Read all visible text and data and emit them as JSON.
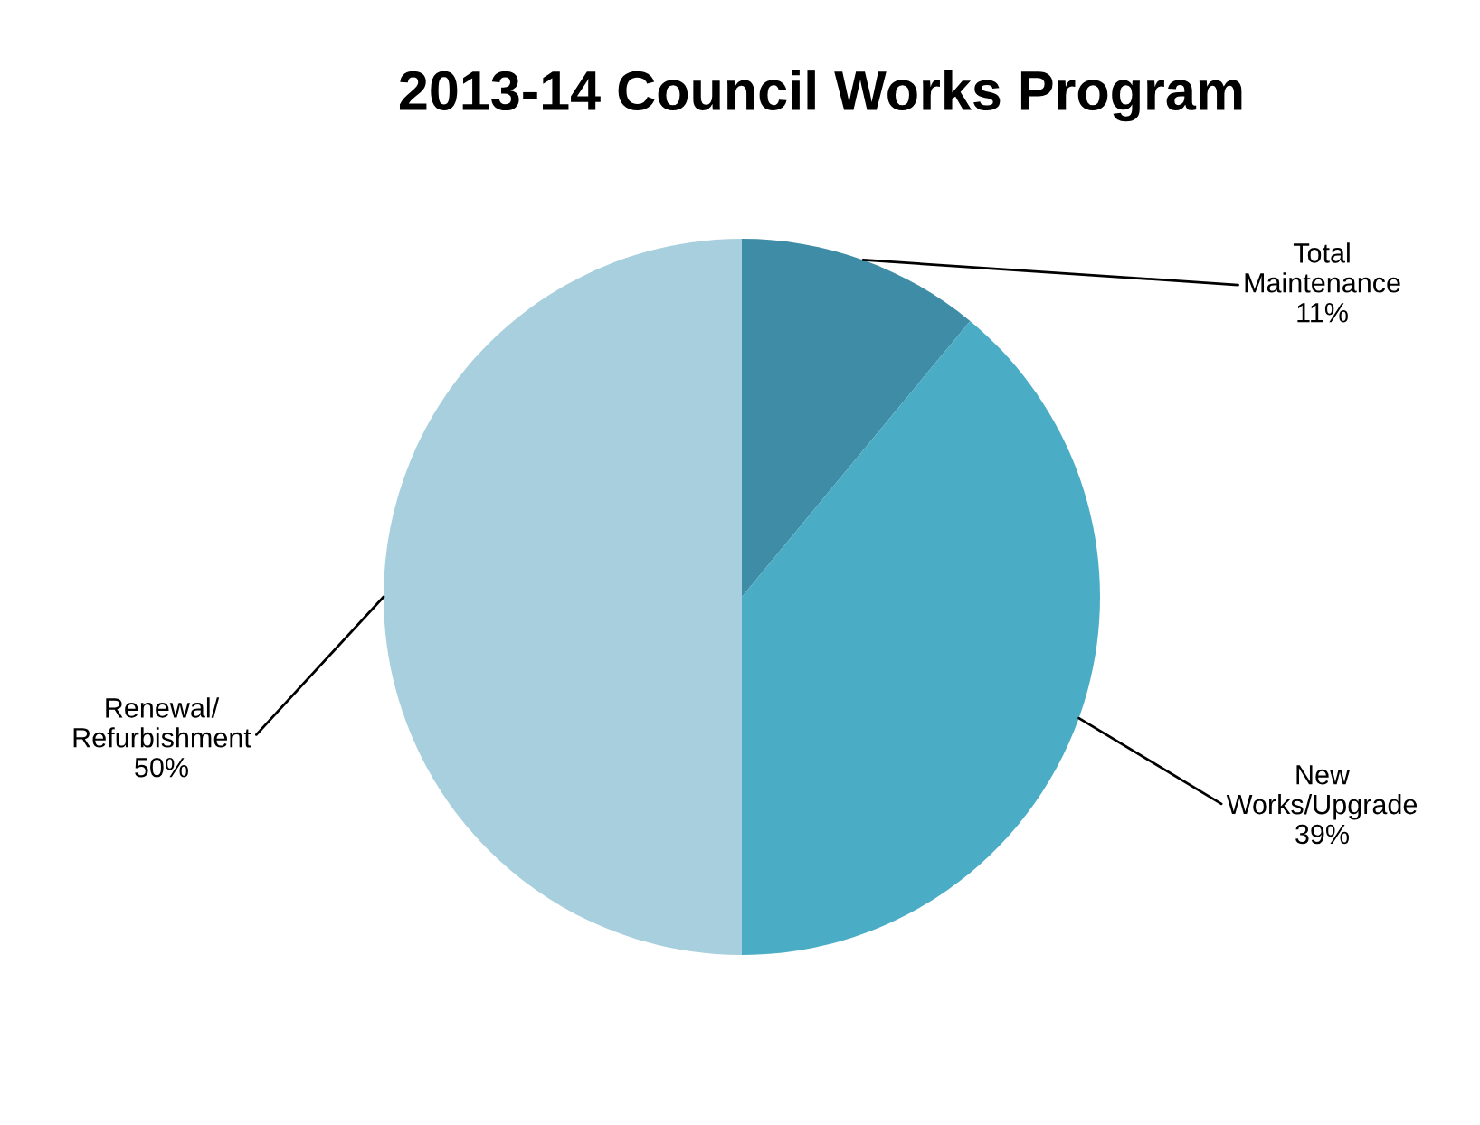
{
  "chart_data": {
    "type": "pie",
    "title": "2013-14 Council Works Program",
    "categories": [
      "Total\nMaintenance",
      "New\nWorks/Upgrade",
      "Renewal/\nRefurbishment"
    ],
    "values": [
      11,
      39,
      50
    ],
    "colors": [
      "#3e8ca5",
      "#4bacc6",
      "#a8cfdd"
    ],
    "value_labels": [
      "11%",
      "39%",
      "50%"
    ],
    "legend": false
  }
}
